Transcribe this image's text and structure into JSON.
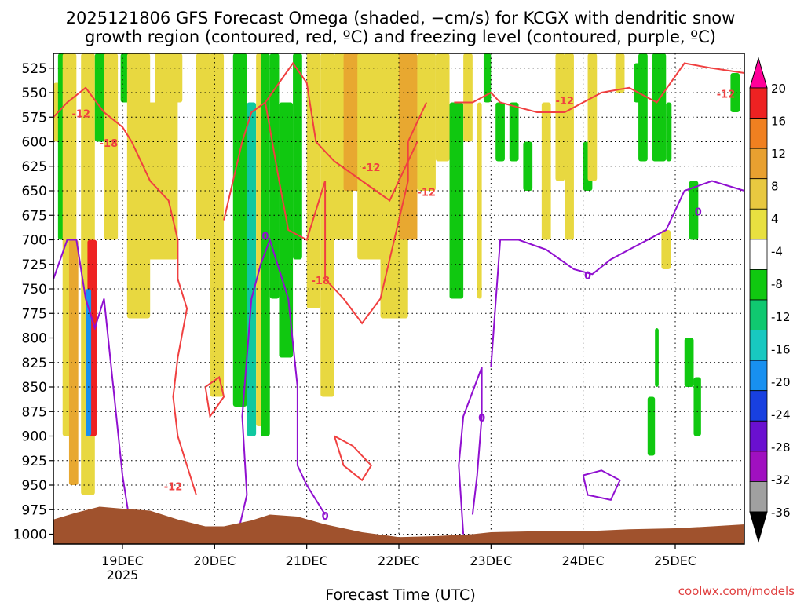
{
  "chart_data": {
    "type": "heatmap",
    "title_line1": "2025121806 GFS Forecast Omega (shaded, −cm/s) for KCGX with dendritic snow",
    "title_line2": "growth region (contoured, red, ºC) and freezing level (contoured, purple, ºC)",
    "xlabel": "Forecast Time (UTC)",
    "credit": "coolwx.com/models",
    "x_ticks": [
      "19DEC",
      "20DEC",
      "21DEC",
      "22DEC",
      "23DEC",
      "24DEC",
      "25DEC"
    ],
    "x_year": "2025",
    "x_range_days": [
      18.25,
      25.75
    ],
    "y_ticks": [
      525,
      550,
      575,
      600,
      625,
      650,
      675,
      700,
      725,
      750,
      775,
      800,
      825,
      850,
      875,
      900,
      925,
      950,
      975,
      1000
    ],
    "y_range_hpa": [
      510,
      1010
    ],
    "grid": true,
    "colorbar": {
      "labels": [
        20,
        16,
        12,
        8,
        4,
        -4,
        -8,
        -12,
        -16,
        -20,
        -24,
        -28,
        -32,
        -36
      ],
      "colors": [
        "#ff0099",
        "#ee2222",
        "#f08020",
        "#e8a030",
        "#e8c840",
        "#e8e040",
        "#ffffff",
        "#10c810",
        "#10c870",
        "#18c8c0",
        "#1890f0",
        "#1840e0",
        "#6a10d0",
        "#a010c0",
        "#a0a0a0",
        "#000000"
      ],
      "extend": "both"
    },
    "contour_labels_red": [
      "-12",
      "-18",
      "-12",
      "-18",
      "-12",
      "-12",
      "-12",
      "-12"
    ],
    "contour_labels_purple": [
      "0",
      "0",
      "0",
      "0",
      "0"
    ],
    "terrain_color": "#a0522d"
  }
}
